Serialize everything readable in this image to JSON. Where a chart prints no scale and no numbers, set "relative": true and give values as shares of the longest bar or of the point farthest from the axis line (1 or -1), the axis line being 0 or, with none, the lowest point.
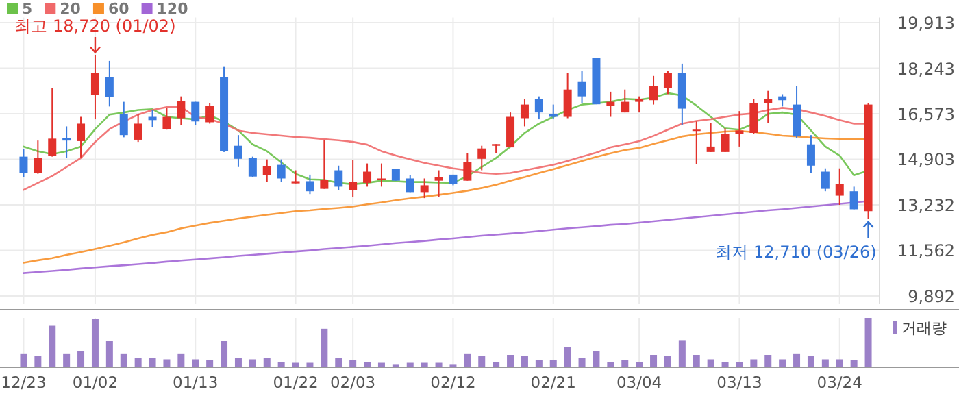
{
  "chart_data": [
    {
      "type": "candlestick",
      "categories": [
        "12/23",
        null,
        null,
        null,
        null,
        "01/02",
        null,
        null,
        null,
        null,
        null,
        null,
        "01/13",
        null,
        null,
        null,
        null,
        null,
        null,
        "01/22",
        null,
        null,
        null,
        "02/03",
        null,
        null,
        null,
        null,
        null,
        null,
        "02/12",
        null,
        null,
        null,
        null,
        null,
        null,
        "02/21",
        null,
        null,
        null,
        null,
        null,
        "03/04",
        null,
        null,
        null,
        null,
        null,
        null,
        "03/13",
        null,
        null,
        null,
        null,
        null,
        null,
        "03/24",
        null,
        null
      ],
      "ohlc": [
        [
          15000,
          15290,
          14240,
          14400
        ],
        [
          14400,
          15590,
          14370,
          14940
        ],
        [
          15040,
          17510,
          15000,
          15660
        ],
        [
          15670,
          16110,
          14940,
          15590
        ],
        [
          15570,
          16460,
          14970,
          16210
        ],
        [
          17260,
          18720,
          16370,
          18080
        ],
        [
          17910,
          18510,
          16840,
          17180
        ],
        [
          16570,
          17010,
          15710,
          15790
        ],
        [
          15620,
          16570,
          15540,
          16210
        ],
        [
          16460,
          16710,
          16070,
          16340
        ],
        [
          16010,
          16790,
          15990,
          16460
        ],
        [
          16410,
          17210,
          16170,
          17040
        ],
        [
          17010,
          17010,
          16170,
          16290
        ],
        [
          16260,
          16960,
          16210,
          16870
        ],
        [
          17910,
          18290,
          15170,
          15200
        ],
        [
          15400,
          15790,
          14620,
          14920
        ],
        [
          14950,
          15000,
          14240,
          14270
        ],
        [
          14320,
          14900,
          14070,
          14650
        ],
        [
          14700,
          14900,
          14070,
          14200
        ],
        [
          14020,
          14500,
          14020,
          14100
        ],
        [
          14100,
          14340,
          13630,
          13730
        ],
        [
          13820,
          15620,
          13820,
          14150
        ],
        [
          14500,
          14670,
          13770,
          13900
        ],
        [
          13770,
          14870,
          13530,
          14070
        ],
        [
          14040,
          14750,
          13900,
          14450
        ],
        [
          14150,
          14750,
          13900,
          14200
        ],
        [
          14540,
          14540,
          14120,
          14120
        ],
        [
          14200,
          14320,
          13700,
          13700
        ],
        [
          13700,
          14200,
          13480,
          13950
        ],
        [
          14120,
          14500,
          13530,
          14250
        ],
        [
          14340,
          14340,
          13950,
          14000
        ],
        [
          14120,
          15120,
          14120,
          14800
        ],
        [
          14920,
          15400,
          14500,
          15300
        ],
        [
          15400,
          15460,
          15120,
          15460
        ],
        [
          15340,
          16620,
          15340,
          16460
        ],
        [
          16410,
          17120,
          16110,
          16910
        ],
        [
          17120,
          17210,
          16370,
          16620
        ],
        [
          16560,
          16910,
          16370,
          16460
        ],
        [
          16460,
          18080,
          16410,
          17460
        ],
        [
          17760,
          18130,
          16960,
          17210
        ],
        [
          18610,
          18610,
          16920,
          16920
        ],
        [
          16870,
          17380,
          16460,
          17010
        ],
        [
          16620,
          17460,
          16620,
          17010
        ],
        [
          17010,
          17210,
          16620,
          17120
        ],
        [
          17070,
          17960,
          16910,
          17580
        ],
        [
          17510,
          18130,
          17290,
          18080
        ],
        [
          18080,
          18410,
          16170,
          16760
        ],
        [
          15960,
          16290,
          14740,
          15990
        ],
        [
          15170,
          16240,
          15170,
          15370
        ],
        [
          15170,
          16040,
          15170,
          15840
        ],
        [
          15840,
          16670,
          15370,
          15960
        ],
        [
          15870,
          17120,
          15840,
          16960
        ],
        [
          16960,
          17410,
          16240,
          17120
        ],
        [
          17210,
          17290,
          16840,
          17070
        ],
        [
          16910,
          17580,
          15670,
          15740
        ],
        [
          15450,
          15790,
          14400,
          14670
        ],
        [
          14450,
          14570,
          13730,
          13820
        ],
        [
          13570,
          14570,
          13230,
          14000
        ],
        [
          13730,
          13900,
          13070,
          13070
        ],
        [
          13000,
          16960,
          12710,
          16910
        ]
      ],
      "series": [
        {
          "name": "5",
          "type": "line",
          "color": "#6cc24a",
          "values": [
            15370,
            15200,
            15090,
            15200,
            15370,
            16010,
            16540,
            16620,
            16710,
            16740,
            16460,
            16410,
            16370,
            16510,
            16290,
            15960,
            15450,
            15200,
            14790,
            14370,
            14170,
            14150,
            14040,
            13990,
            14040,
            14120,
            14100,
            14070,
            14070,
            14050,
            14040,
            14290,
            14620,
            14950,
            15370,
            15870,
            16210,
            16460,
            16710,
            16910,
            16960,
            17010,
            17120,
            17090,
            17160,
            17330,
            17240,
            16870,
            16460,
            16040,
            15990,
            16210,
            16570,
            16620,
            16540,
            15960,
            15370,
            15040,
            14320,
            14490
          ]
        },
        {
          "name": "20",
          "type": "line",
          "color": "#f0696a",
          "values": [
            13780,
            14040,
            14290,
            14620,
            14950,
            15540,
            16010,
            16290,
            16540,
            16710,
            16820,
            16820,
            16460,
            16370,
            16210,
            15960,
            15870,
            15820,
            15770,
            15720,
            15690,
            15640,
            15600,
            15540,
            15440,
            15200,
            15040,
            14900,
            14770,
            14670,
            14570,
            14500,
            14400,
            14370,
            14400,
            14500,
            14600,
            14700,
            14840,
            15000,
            15150,
            15340,
            15450,
            15570,
            15760,
            15990,
            16210,
            16310,
            16370,
            16460,
            16540,
            16590,
            16710,
            16790,
            16740,
            16620,
            16490,
            16340,
            16210,
            16210
          ]
        },
        {
          "name": "60",
          "type": "line",
          "color": "#f7902a",
          "values": [
            11110,
            11200,
            11280,
            11400,
            11500,
            11610,
            11730,
            11860,
            12000,
            12130,
            12230,
            12370,
            12470,
            12570,
            12650,
            12730,
            12800,
            12870,
            12930,
            13000,
            13030,
            13080,
            13120,
            13170,
            13250,
            13320,
            13400,
            13470,
            13530,
            13600,
            13670,
            13750,
            13850,
            13970,
            14120,
            14250,
            14400,
            14540,
            14690,
            14840,
            14990,
            15120,
            15240,
            15320,
            15470,
            15600,
            15740,
            15820,
            15870,
            15920,
            15940,
            15900,
            15840,
            15770,
            15740,
            15700,
            15670,
            15650,
            15650,
            15650
          ]
        },
        {
          "name": "120",
          "type": "line",
          "color": "#a266d6",
          "values": [
            10730,
            10770,
            10810,
            10850,
            10900,
            10940,
            10980,
            11020,
            11060,
            11100,
            11150,
            11190,
            11230,
            11270,
            11310,
            11360,
            11400,
            11440,
            11480,
            11520,
            11560,
            11610,
            11650,
            11690,
            11730,
            11780,
            11830,
            11870,
            11910,
            11960,
            12000,
            12050,
            12100,
            12140,
            12180,
            12220,
            12270,
            12320,
            12370,
            12410,
            12450,
            12500,
            12530,
            12580,
            12630,
            12680,
            12730,
            12780,
            12830,
            12880,
            12930,
            12980,
            13030,
            13070,
            13120,
            13170,
            13220,
            13270,
            13320,
            13370
          ]
        }
      ],
      "ylim": [
        9600,
        20100
      ],
      "yticks": [
        {
          "value": 9892,
          "label": "9,892"
        },
        {
          "value": 11562,
          "label": "11,562"
        },
        {
          "value": 13232,
          "label": "13,232"
        },
        {
          "value": 14903,
          "label": "14,903"
        },
        {
          "value": 16573,
          "label": "16,573"
        },
        {
          "value": 18243,
          "label": "18,243"
        },
        {
          "value": 19913,
          "label": "19,913"
        }
      ],
      "grid": true,
      "legend": "top left",
      "tick_labels": "y",
      "annotations": [
        {
          "text": "최고 18,720 (01/02)",
          "x": "01/02",
          "y": 18720
        },
        "최저 12,710 (03/26)"
      ]
    },
    {
      "type": "bar",
      "categories": [
        "12/23",
        null,
        null,
        null,
        null,
        "01/02",
        null,
        null,
        null,
        null,
        null,
        null,
        "01/13",
        null,
        null,
        null,
        null,
        null,
        null,
        "01/22",
        null,
        null,
        null,
        "02/03",
        null,
        null,
        null,
        null,
        null,
        null,
        "02/12",
        null,
        null,
        null,
        null,
        null,
        null,
        "02/21",
        null,
        null,
        null,
        null,
        null,
        "03/04",
        null,
        null,
        null,
        null,
        null,
        null,
        "03/13",
        null,
        null,
        null,
        null,
        null,
        null,
        "03/24",
        null,
        null
      ],
      "series": [
        {
          "name": "거래량",
          "color": "#9b80c8",
          "values": [
            0.28,
            0.23,
            0.84,
            0.28,
            0.33,
            0.98,
            0.53,
            0.28,
            0.19,
            0.19,
            0.16,
            0.28,
            0.16,
            0.14,
            0.53,
            0.19,
            0.16,
            0.19,
            0.11,
            0.09,
            0.09,
            0.78,
            0.19,
            0.14,
            0.11,
            0.09,
            0.05,
            0.09,
            0.09,
            0.09,
            0.05,
            0.28,
            0.23,
            0.11,
            0.25,
            0.23,
            0.14,
            0.14,
            0.41,
            0.19,
            0.33,
            0.11,
            0.14,
            0.11,
            0.25,
            0.23,
            0.55,
            0.25,
            0.16,
            0.11,
            0.11,
            0.16,
            0.25,
            0.16,
            0.28,
            0.23,
            0.16,
            0.16,
            0.14,
            1
          ]
        }
      ],
      "relative": true,
      "legend": "top right",
      "grid": "x"
    }
  ]
}
